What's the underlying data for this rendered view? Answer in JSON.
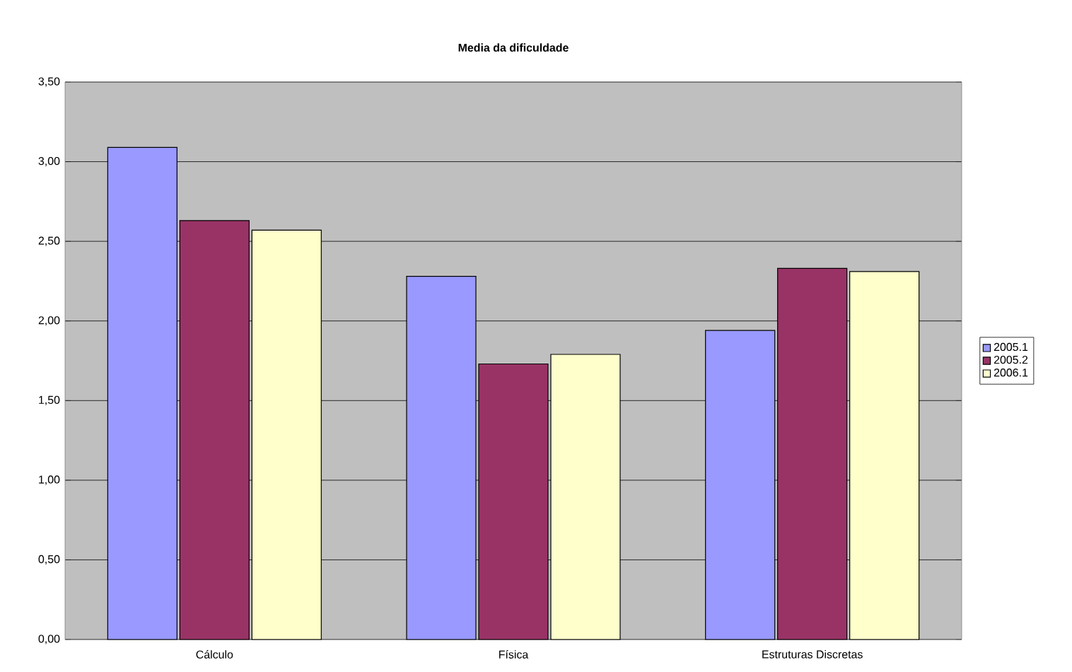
{
  "chart_data": {
    "type": "bar",
    "title": "Media  da dificuldade",
    "categories": [
      "Cálculo",
      "Física",
      "Estruturas Discretas"
    ],
    "series": [
      {
        "name": "2005.1",
        "color": "#9999ff",
        "values": [
          3.09,
          2.28,
          1.94
        ]
      },
      {
        "name": "2005.2",
        "color": "#993366",
        "values": [
          2.63,
          1.73,
          2.33
        ]
      },
      {
        "name": "2006.1",
        "color": "#ffffcc",
        "values": [
          2.57,
          1.79,
          2.31
        ]
      }
    ],
    "ylim": [
      0,
      3.5
    ],
    "yticks": [
      {
        "value": 0,
        "label": "0,00"
      },
      {
        "value": 0.5,
        "label": "0,50"
      },
      {
        "value": 1,
        "label": "1,00"
      },
      {
        "value": 1.5,
        "label": "1,50"
      },
      {
        "value": 2,
        "label": "2,00"
      },
      {
        "value": 2.5,
        "label": "2,50"
      },
      {
        "value": 3,
        "label": "3,00"
      },
      {
        "value": 3.5,
        "label": "3,50"
      }
    ],
    "grid": "y",
    "legend": "right"
  }
}
